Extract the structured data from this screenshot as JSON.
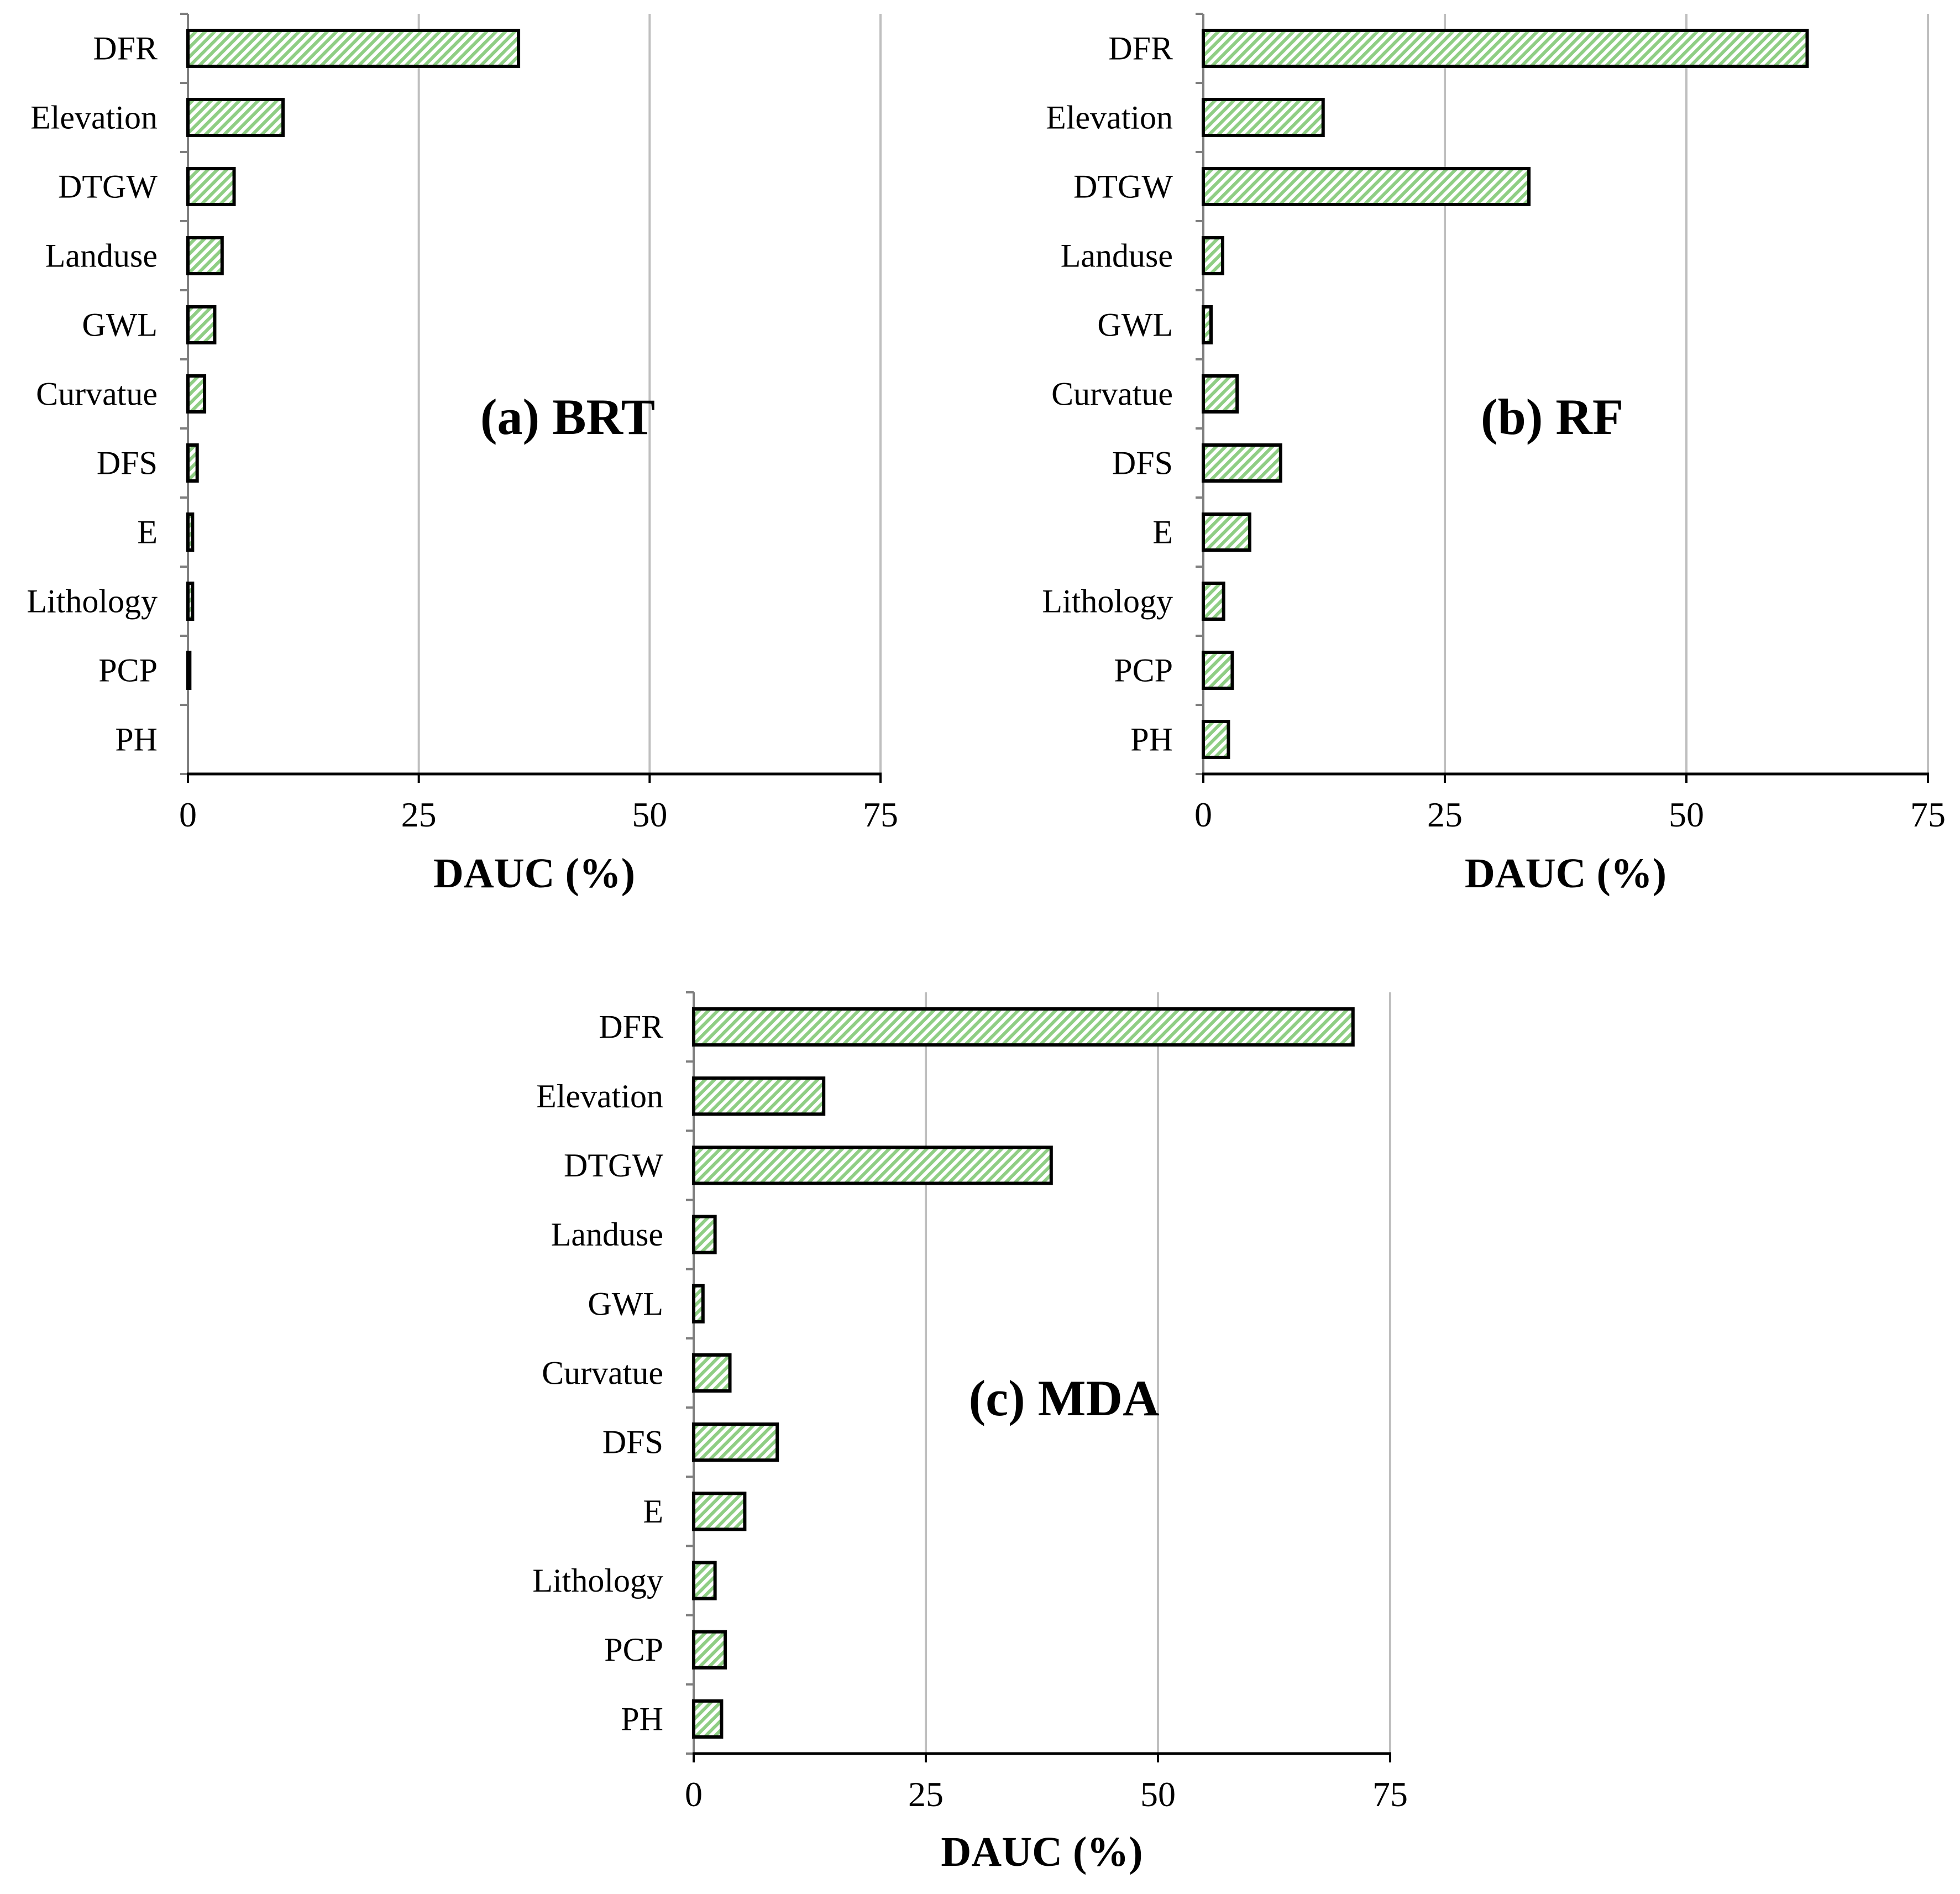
{
  "chart_data": [
    {
      "type": "bar",
      "orientation": "horizontal",
      "title": "(a) BRT",
      "xlabel": "DAUC (%)",
      "ylabel": "",
      "xlim": [
        0,
        75
      ],
      "xticks": [
        0,
        25,
        50,
        75
      ],
      "grid": true,
      "categories": [
        "DFR",
        "Elevation",
        "DTGW",
        "Landuse",
        "GWL",
        "Curvatue",
        "DFS",
        "E",
        "Lithology",
        "PCP",
        "PH"
      ],
      "values": [
        35.8,
        10.3,
        5.0,
        3.7,
        2.9,
        1.8,
        1.0,
        0.5,
        0.5,
        0.2,
        0.0
      ]
    },
    {
      "type": "bar",
      "orientation": "horizontal",
      "title": "(b) RF",
      "xlabel": "DAUC (%)",
      "ylabel": "",
      "xlim": [
        0,
        75
      ],
      "xticks": [
        0,
        25,
        50,
        75
      ],
      "grid": true,
      "categories": [
        "DFR",
        "Elevation",
        "DTGW",
        "Landuse",
        "GWL",
        "Curvatue",
        "DFS",
        "E",
        "Lithology",
        "PCP",
        "PH"
      ],
      "values": [
        62.5,
        12.4,
        33.7,
        2.0,
        0.8,
        3.5,
        8.0,
        4.8,
        2.1,
        3.0,
        2.6
      ]
    },
    {
      "type": "bar",
      "orientation": "horizontal",
      "title": "(c) MDA",
      "xlabel": "DAUC (%)",
      "ylabel": "",
      "xlim": [
        0,
        75
      ],
      "xticks": [
        0,
        25,
        50,
        75
      ],
      "grid": true,
      "categories": [
        "DFR",
        "Elevation",
        "DTGW",
        "Landuse",
        "GWL",
        "Curvatue",
        "DFS",
        "E",
        "Lithology",
        "PCP",
        "PH"
      ],
      "values": [
        71.0,
        14.0,
        38.5,
        2.3,
        1.0,
        3.9,
        9.0,
        5.5,
        2.3,
        3.4,
        3.0
      ]
    }
  ],
  "colors": {
    "bar_fill": "#8fce84",
    "bar_stroke": "#000000",
    "grid": "#bfbfbf",
    "axis": "#7f7f7f"
  }
}
